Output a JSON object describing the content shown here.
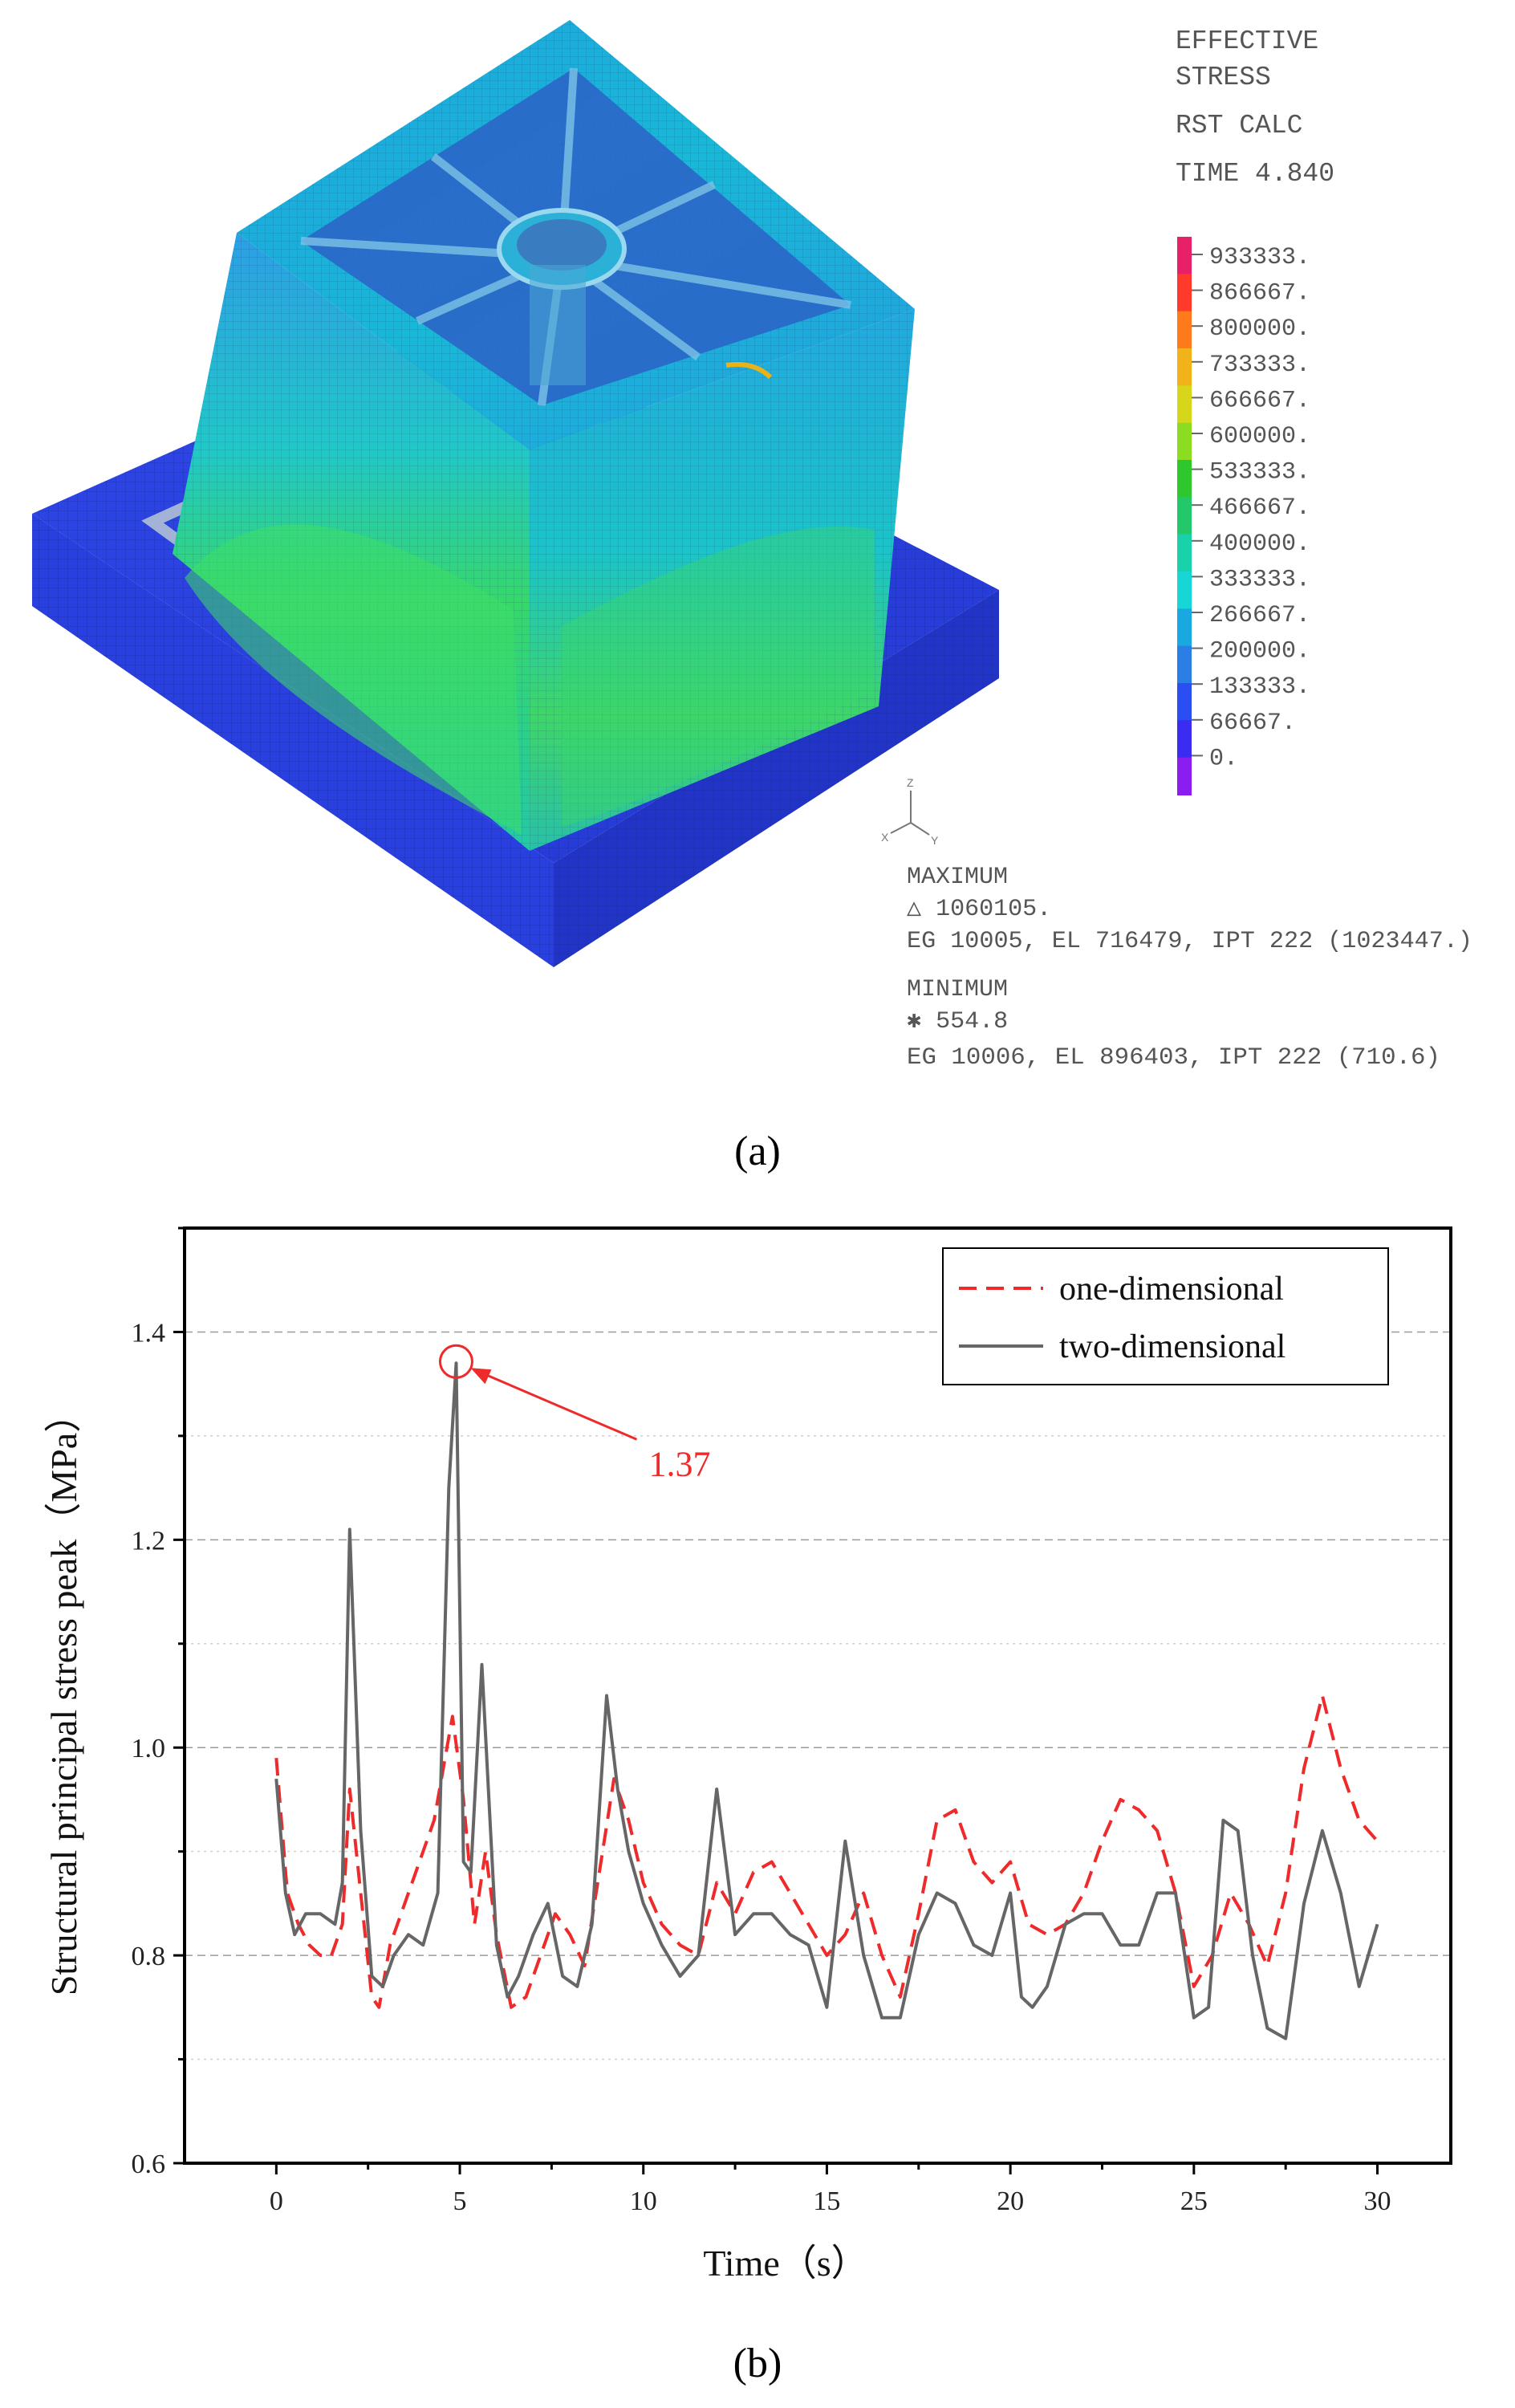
{
  "panel_a": {
    "caption": "(a)",
    "legend_header": [
      "EFFECTIVE",
      "STRESS",
      "RST CALC",
      "TIME 4.840"
    ],
    "scale_values": [
      "933333.",
      "866667.",
      "800000.",
      "733333.",
      "666667.",
      "600000.",
      "533333.",
      "466667.",
      "400000.",
      "333333.",
      "266667.",
      "200000.",
      "133333.",
      "66667.",
      "0."
    ],
    "scale_colors": [
      "#e8206a",
      "#ff3a2a",
      "#ff7a1a",
      "#f2b21a",
      "#d6d61a",
      "#8cdc22",
      "#2ec82e",
      "#22c86a",
      "#1ad2aa",
      "#16d6d6",
      "#1aa8e0",
      "#2a7ee6",
      "#2b4ef2",
      "#3a2cf0",
      "#8a1ef0"
    ],
    "axis_triad": {
      "z": "Z",
      "x": "X",
      "y": "Y"
    },
    "maximum": {
      "label": "MAXIMUM",
      "value": "△ 1060105.",
      "detail": "EG 10005, EL 716479, IPT 222 (1023447.)"
    },
    "minimum": {
      "label": "MINIMUM",
      "value": "✱ 554.8",
      "detail": "EG 10006, EL 896403, IPT 222 (710.6)"
    }
  },
  "panel_b": {
    "caption": "(b)"
  },
  "chart_data": {
    "type": "line",
    "title": "",
    "xlabel": "Time（s）",
    "ylabel": "Structural principal stress peak（MPa）",
    "xlim": [
      -2.5,
      32
    ],
    "ylim": [
      0.6,
      1.5
    ],
    "xticks": [
      0,
      5,
      10,
      15,
      20,
      25,
      30
    ],
    "yticks": [
      0.6,
      0.8,
      1.0,
      1.2,
      1.4
    ],
    "xtick_labels": [
      "0",
      "5",
      "10",
      "15",
      "20",
      "25",
      "30"
    ],
    "ytick_labels": [
      "0.6",
      "0.8",
      "1.0",
      "1.2",
      "1.4"
    ],
    "grid": "dashed horizontal at major and minor y ticks",
    "legend_position": "top-right",
    "series": [
      {
        "name": "one-dimensional",
        "color": "#ee2a2a",
        "style": "dashed",
        "x": [
          0,
          0.3,
          0.6,
          0.9,
          1.2,
          1.5,
          1.8,
          2.0,
          2.3,
          2.6,
          2.8,
          3.1,
          3.5,
          3.9,
          4.3,
          4.6,
          4.8,
          5.1,
          5.4,
          5.7,
          6.0,
          6.4,
          6.8,
          7.2,
          7.6,
          8.0,
          8.4,
          8.8,
          9.2,
          9.6,
          10.0,
          10.5,
          11.0,
          11.5,
          12.0,
          12.5,
          13.0,
          13.5,
          14.0,
          14.5,
          15.0,
          15.5,
          16.0,
          16.5,
          17.0,
          17.5,
          18.0,
          18.5,
          19.0,
          19.5,
          20.0,
          20.5,
          21.0,
          21.5,
          22.0,
          22.5,
          23.0,
          23.5,
          24.0,
          24.5,
          25.0,
          25.5,
          26.0,
          26.5,
          27.0,
          27.5,
          28.0,
          28.5,
          29.0,
          29.5,
          30.0
        ],
        "values": [
          0.99,
          0.86,
          0.83,
          0.81,
          0.8,
          0.8,
          0.83,
          0.96,
          0.86,
          0.76,
          0.75,
          0.81,
          0.85,
          0.89,
          0.93,
          0.99,
          1.03,
          0.95,
          0.83,
          0.9,
          0.82,
          0.75,
          0.76,
          0.8,
          0.84,
          0.82,
          0.79,
          0.88,
          0.97,
          0.93,
          0.87,
          0.83,
          0.81,
          0.8,
          0.87,
          0.84,
          0.88,
          0.89,
          0.86,
          0.83,
          0.8,
          0.82,
          0.86,
          0.8,
          0.76,
          0.84,
          0.93,
          0.94,
          0.89,
          0.87,
          0.89,
          0.83,
          0.82,
          0.83,
          0.86,
          0.91,
          0.95,
          0.94,
          0.92,
          0.86,
          0.77,
          0.8,
          0.86,
          0.83,
          0.79,
          0.86,
          0.98,
          1.05,
          0.98,
          0.93,
          0.91
        ]
      },
      {
        "name": "two-dimensional",
        "color": "#666666",
        "style": "solid",
        "x": [
          0,
          0.25,
          0.5,
          0.8,
          1.2,
          1.6,
          1.8,
          2.0,
          2.3,
          2.6,
          2.9,
          3.2,
          3.6,
          4.0,
          4.4,
          4.7,
          4.9,
          5.1,
          5.3,
          5.6,
          6.0,
          6.3,
          6.6,
          7.0,
          7.4,
          7.8,
          8.2,
          8.6,
          9.0,
          9.3,
          9.6,
          10.0,
          10.5,
          11.0,
          11.5,
          12.0,
          12.5,
          13.0,
          13.5,
          14.0,
          14.5,
          15.0,
          15.5,
          16.0,
          16.5,
          17.0,
          17.5,
          18.0,
          18.5,
          19.0,
          19.5,
          20.0,
          20.3,
          20.6,
          21.0,
          21.5,
          22.0,
          22.5,
          23.0,
          23.5,
          24.0,
          24.5,
          25.0,
          25.4,
          25.8,
          26.2,
          26.6,
          27.0,
          27.5,
          28.0,
          28.5,
          29.0,
          29.5,
          30.0
        ],
        "values": [
          0.97,
          0.86,
          0.82,
          0.84,
          0.84,
          0.83,
          0.87,
          1.21,
          0.92,
          0.78,
          0.77,
          0.8,
          0.82,
          0.81,
          0.86,
          1.25,
          1.37,
          0.89,
          0.88,
          1.08,
          0.81,
          0.76,
          0.78,
          0.82,
          0.85,
          0.78,
          0.77,
          0.83,
          1.05,
          0.96,
          0.9,
          0.85,
          0.81,
          0.78,
          0.8,
          0.96,
          0.82,
          0.84,
          0.84,
          0.82,
          0.81,
          0.75,
          0.91,
          0.8,
          0.74,
          0.74,
          0.82,
          0.86,
          0.85,
          0.81,
          0.8,
          0.86,
          0.76,
          0.75,
          0.77,
          0.83,
          0.84,
          0.84,
          0.81,
          0.81,
          0.86,
          0.86,
          0.74,
          0.75,
          0.93,
          0.92,
          0.8,
          0.73,
          0.72,
          0.85,
          0.92,
          0.86,
          0.77,
          0.83
        ]
      }
    ],
    "annotations": [
      {
        "text": "1.37",
        "x": 4.9,
        "y": 1.37,
        "color": "#ee2a2a"
      }
    ]
  }
}
